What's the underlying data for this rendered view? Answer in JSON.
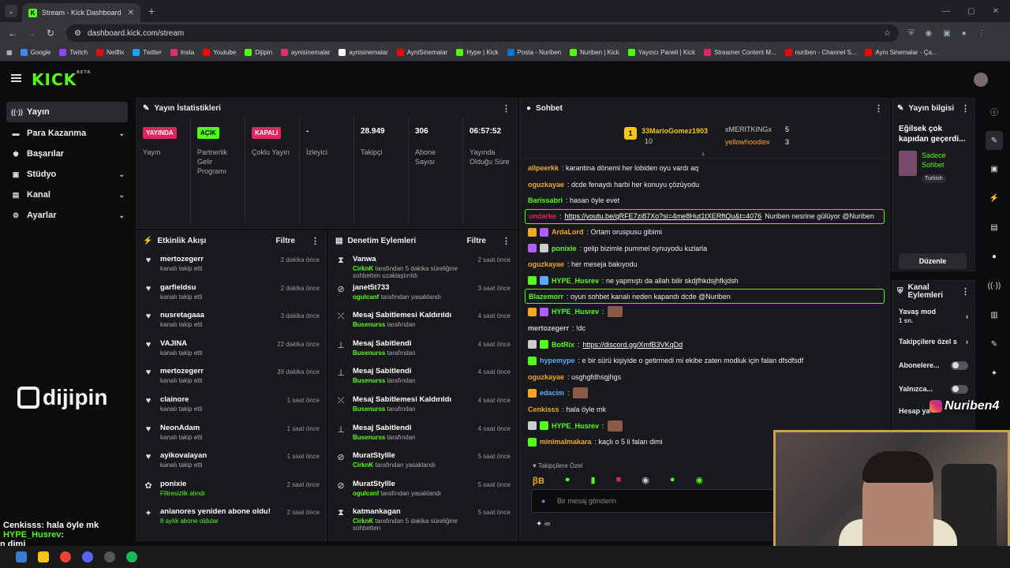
{
  "browser": {
    "tab_title": "Stream - Kick Dashboard",
    "url": "dashboard.kick.com/stream",
    "bookmarks": [
      "Google",
      "Twitch",
      "Netflix",
      "Twitter",
      "Insta",
      "Youtube",
      "Dijipin",
      "aynisinemalar",
      "aynisinemalar",
      "AyniSinemalar",
      "Hype | Kick",
      "Posta - Nuriben",
      "Nuriben | Kick",
      "Yayıncı Paneli | Kick",
      "Streamer Content M...",
      "nuriben - Channel S...",
      "Aynı Sinemalar - Ça..."
    ]
  },
  "header": {
    "logo": "KICK",
    "logo_sup": "BETA"
  },
  "sidebar": {
    "items": [
      {
        "label": "Yayın",
        "icon": "broadcast-icon"
      },
      {
        "label": "Para Kazanma",
        "icon": "money-icon"
      },
      {
        "label": "Başarılar",
        "icon": "trophy-icon"
      },
      {
        "label": "Stüdyo",
        "icon": "studio-icon"
      },
      {
        "label": "Kanal",
        "icon": "channel-icon"
      },
      {
        "label": "Ayarlar",
        "icon": "gear-icon"
      }
    ]
  },
  "overlay": {
    "brand": "dijipin",
    "chat1_user": "Cenkisss",
    "chat1_text": ": hala öyle mk",
    "chat2_user": "HYPE_Husrev",
    "chat2_text": ":",
    "chat3_text": "n dimi",
    "ig_handle": "Nuriben4"
  },
  "stats": {
    "title": "Yayın İstatistikleri",
    "items": [
      {
        "value": "YAYINDA",
        "label": "Yayın"
      },
      {
        "value": "AÇIK",
        "label": "Partnerlik Gelir Programı"
      },
      {
        "value": "KAPALI",
        "label": "Çoklu Yayın"
      },
      {
        "value": "-",
        "label": "İzleyici"
      },
      {
        "value": "28.949",
        "label": "Takipçi"
      },
      {
        "value": "306",
        "label": "Abone Sayısı"
      },
      {
        "value": "06:57:52",
        "label": "Yayında Olduğu Süre"
      }
    ]
  },
  "activity": {
    "title": "Etkinlik Akışı",
    "filter": "Filtre",
    "rows": [
      {
        "name": "mertozegerr",
        "sub": "kanalı takip etti",
        "time": "2 dakika önce",
        "icon": "heart-icon"
      },
      {
        "name": "garfieldsu",
        "sub": "kanalı takip etti",
        "time": "2 dakika önce",
        "icon": "heart-icon"
      },
      {
        "name": "nusretagaaa",
        "sub": "kanalı takip etti",
        "time": "3 dakika önce",
        "icon": "heart-icon"
      },
      {
        "name": "VAJINA",
        "sub": "kanalı takip etti",
        "time": "22 dakika önce",
        "icon": "heart-icon"
      },
      {
        "name": "mertozegerr",
        "sub": "kanalı takip etti",
        "time": "39 dakika önce",
        "icon": "heart-icon"
      },
      {
        "name": "clainore",
        "sub": "kanalı takip etti",
        "time": "1 saat önce",
        "icon": "heart-icon"
      },
      {
        "name": "NeonAdam",
        "sub": "kanalı takip etti",
        "time": "1 saat önce",
        "icon": "heart-icon"
      },
      {
        "name": "ayikovalayan",
        "sub": "kanalı takip etti",
        "time": "1 saat önce",
        "icon": "heart-icon"
      },
      {
        "name": "ponixie",
        "sub": "Filtresizlik alındı",
        "time": "2 saat önce",
        "icon": "gift-icon"
      },
      {
        "name": "anianores yeniden abone oldu!",
        "sub": "8 aylık abone oldular",
        "time": "2 saat önce",
        "icon": "sparkle-icon"
      }
    ]
  },
  "moderation": {
    "title": "Denetim Eylemleri",
    "filter": "Filtre",
    "rows": [
      {
        "name": "Vanwa",
        "actor": "CirknK",
        "sub": " tarafından 5 dakika süreliğine sohbetten uzaklaştırıldı",
        "time": "2 saat önce",
        "icon": "hourglass-icon"
      },
      {
        "name": "janet5t733",
        "actor": "ogulcanf",
        "sub": " tarafından yasaklandı",
        "time": "3 saat önce",
        "icon": "ban-icon"
      },
      {
        "name": "Mesaj Sabitlemesi Kaldırıldı",
        "actor": "Busenurss",
        "sub": " tarafından",
        "time": "4 saat önce",
        "icon": "unpin-icon"
      },
      {
        "name": "Mesaj Sabitlendi",
        "actor": "Busenurss",
        "sub": " tarafından",
        "time": "4 saat önce",
        "icon": "pin-icon"
      },
      {
        "name": "Mesaj Sabitlendi",
        "actor": "Busenurss",
        "sub": " tarafından",
        "time": "4 saat önce",
        "icon": "pin-icon"
      },
      {
        "name": "Mesaj Sabitlemesi Kaldırıldı",
        "actor": "Busenurss",
        "sub": " tarafından",
        "time": "4 saat önce",
        "icon": "unpin-icon"
      },
      {
        "name": "Mesaj Sabitlendi",
        "actor": "Busenurss",
        "sub": " tarafından",
        "time": "4 saat önce",
        "icon": "pin-icon"
      },
      {
        "name": "MuratStyllle",
        "actor": "CirknK",
        "sub": " tarafından yasaklandı",
        "time": "5 saat önce",
        "icon": "ban-icon"
      },
      {
        "name": "MuratStyllle",
        "actor": "ogulcanf",
        "sub": " tarafından yasaklandı",
        "time": "5 saat önce",
        "icon": "ban-icon"
      },
      {
        "name": "katmankagan",
        "actor": "CirknK",
        "sub": " tarafından 5 dakika süreliğine sohbetten",
        "time": "5 saat önce",
        "icon": "hourglass-icon"
      }
    ]
  },
  "chat": {
    "title": "Sohbet",
    "top": {
      "first_user": "33MarioGomez1903",
      "first_count": "10",
      "second_user": "xMERITKINGx",
      "second_count": "5",
      "third_user": "yellowhoodiex",
      "third_count": "3"
    },
    "lines": [
      {
        "user": "allpeerkk",
        "color": "#f5a623",
        "text": ": karantina dönemi her lobiden oyu vardı aq"
      },
      {
        "user": "oguzkayae",
        "color": "#f5a623",
        "text": ": dcde fenaydı harbi her konuyu çözüyodu"
      },
      {
        "user": "Barissabri",
        "color": "#53fc18",
        "text": ": hasan öyle evet"
      },
      {
        "user": "undarke",
        "color": "#e0245e",
        "text": ": ",
        "link": "https://youtu.be/qRFE7zi87Xo?si=4me8Hut1tXERftQu&t=4076",
        "after": " Nuriben nesrine gülüyor @Nuriben",
        "highlight": true
      },
      {
        "user": "ArdaLord",
        "color": "#f5a623",
        "text": ": Ortam oruspusu gibimi",
        "badges": 2
      },
      {
        "user": "ponixie",
        "color": "#53fc18",
        "text": ": gelip bizimle pummel oynuyodu kızlarla",
        "badges": 2
      },
      {
        "user": "oguzkayae",
        "color": "#f5a623",
        "text": ": her meseja bakıyodu"
      },
      {
        "user": "HYPE_Husrev",
        "color": "#53fc18",
        "text": ": ne yapmıştı da allah bilir skdjfhkdsjhfkjdsh",
        "badges": 2
      },
      {
        "user": "Blazemorr",
        "color": "#53fc18",
        "text": ": oyun sohbet kanalı neden kapandı dcde @Nuriben",
        "highlight": true
      },
      {
        "user": "HYPE_Husrev",
        "color": "#53fc18",
        "text": ":",
        "badges": 2,
        "emote": true
      },
      {
        "user": "mertozegerr",
        "color": "#ccc",
        "text": ": !dc"
      },
      {
        "user": "BotRix",
        "color": "#53fc18",
        "text": ": ",
        "link": "https://discord.gg/XmfB3VKqDd",
        "badges": 2
      },
      {
        "user": "hypemype",
        "color": "#5fa8ff",
        "text": ": e bir sürü kişiyide o getirmedi mi ekibe zaten modluk için falan dfsdfsdf",
        "badges": 1
      },
      {
        "user": "oguzkayae",
        "color": "#f5a623",
        "text": ": usghgfdhsgjhgs"
      },
      {
        "user": "edacim",
        "color": "#5fa8ff",
        "text": ":",
        "badges": 1,
        "emote": true
      },
      {
        "user": "Cenkisss",
        "color": "#f5a623",
        "text": ": hala öyle mk"
      },
      {
        "user": "HYPE_Husrev",
        "color": "#53fc18",
        "text": ":",
        "badges": 2,
        "emote": true
      },
      {
        "user": "minimalmakara",
        "color": "#f5a623",
        "text": ": kaçlı o 5 li falan dimi",
        "badges": 1
      }
    ],
    "followers_only": "Takipçilere Özel",
    "input_placeholder": "Bir mesaj gönderin"
  },
  "stream_info": {
    "title": "Yayın bilgisi",
    "stream_title": "Eğilsek çok kapıdan geçerdi...",
    "category": "Sadece Sohbet",
    "language": "Turkish",
    "edit": "Düzenle"
  },
  "channel_actions": {
    "title": "Kanal Eylemleri",
    "slow_mode": "Yavaş mod",
    "slow_value": "1 sn.",
    "followers": "Takipçilere özel s",
    "subs": "Abonelere...",
    "only": "Yalnızca...",
    "account": "Hesap ya"
  }
}
